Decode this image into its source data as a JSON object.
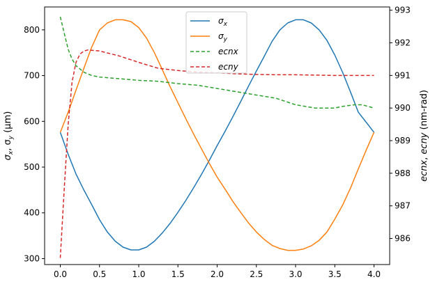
{
  "chart_data": {
    "type": "line",
    "x_ticks": [
      "0.0",
      "0.5",
      "1.0",
      "1.5",
      "2.0",
      "2.5",
      "3.0",
      "3.5",
      "4.0"
    ],
    "y_left_ticks": [
      "300",
      "400",
      "500",
      "600",
      "700",
      "800"
    ],
    "y_right_ticks": [
      "986",
      "987",
      "988",
      "989",
      "990",
      "991",
      "992",
      "993"
    ],
    "xlim": [
      -0.2,
      4.2
    ],
    "ylim_left": [
      287,
      850
    ],
    "ylim_right": [
      985.2,
      993.1
    ],
    "ylabel_left": {
      "main": "σ",
      "sub1": "x",
      "sep": ", σ",
      "sub2": "y",
      "unit": " (μm)"
    },
    "ylabel_right": {
      "part1": "ecnx",
      "sep": ", ",
      "part2": "ecny",
      "unit": " (nm-rad)"
    },
    "grid": false,
    "legend_position": "top-center",
    "series": [
      {
        "name": "σx",
        "name_main": "σ",
        "name_sub": "x",
        "axis": "left",
        "color": "#1f77b4",
        "dash": "solid",
        "x": [
          0.0,
          0.1,
          0.2,
          0.3,
          0.4,
          0.5,
          0.6,
          0.7,
          0.8,
          0.9,
          1.0,
          1.1,
          1.2,
          1.3,
          1.4,
          1.5,
          1.6,
          1.7,
          1.8,
          1.9,
          2.0,
          2.1,
          2.2,
          2.3,
          2.4,
          2.5,
          2.6,
          2.7,
          2.8,
          2.9,
          3.0,
          3.1,
          3.2,
          3.3,
          3.4,
          3.5,
          3.6,
          3.7,
          3.8,
          3.9,
          4.0
        ],
        "y": [
          576,
          528,
          485,
          450,
          418,
          385,
          358,
          338,
          325,
          319,
          319,
          325,
          338,
          356,
          377,
          401,
          427,
          455,
          484,
          515,
          547,
          578,
          610,
          643,
          677,
          710,
          742,
          775,
          800,
          815,
          822,
          822,
          815,
          800,
          777,
          745,
          707,
          664,
          620,
          598,
          576
        ]
      },
      {
        "name": "σy",
        "name_main": "σ",
        "name_sub": "y",
        "axis": "left",
        "color": "#ff7f0e",
        "dash": "solid",
        "x": [
          0.0,
          0.1,
          0.2,
          0.3,
          0.4,
          0.5,
          0.6,
          0.7,
          0.8,
          0.9,
          1.0,
          1.1,
          1.2,
          1.3,
          1.4,
          1.5,
          1.6,
          1.7,
          1.8,
          1.9,
          2.0,
          2.1,
          2.2,
          2.3,
          2.4,
          2.5,
          2.6,
          2.7,
          2.8,
          2.9,
          3.0,
          3.1,
          3.2,
          3.3,
          3.4,
          3.5,
          3.6,
          3.7,
          3.8,
          3.9,
          4.0
        ],
        "y": [
          576,
          620,
          668,
          716,
          762,
          800,
          815,
          822,
          822,
          818,
          805,
          782,
          750,
          713,
          676,
          641,
          606,
          572,
          540,
          508,
          478,
          452,
          425,
          401,
          378,
          358,
          342,
          329,
          322,
          318,
          318,
          321,
          328,
          340,
          358,
          386,
          417,
          454,
          496,
          537,
          576
        ]
      },
      {
        "name": "ecnx",
        "axis": "right",
        "color": "#2ca02c",
        "dash": "5,3",
        "x": [
          0.0,
          0.05,
          0.1,
          0.15,
          0.2,
          0.3,
          0.4,
          0.5,
          0.75,
          1.0,
          1.25,
          1.5,
          1.75,
          2.0,
          2.25,
          2.5,
          2.75,
          3.0,
          3.25,
          3.4,
          3.5,
          3.6,
          3.75,
          3.85,
          4.0
        ],
        "y": [
          992.8,
          992.3,
          991.8,
          991.5,
          991.3,
          991.1,
          991.0,
          990.95,
          990.9,
          990.85,
          990.82,
          990.75,
          990.7,
          990.6,
          990.5,
          990.4,
          990.3,
          990.1,
          990.0,
          990.0,
          990.0,
          990.05,
          990.1,
          990.1,
          990.0
        ]
      },
      {
        "name": "ecny",
        "axis": "right",
        "color": "#d62728",
        "dash": "5,3",
        "x": [
          0.0,
          0.05,
          0.1,
          0.15,
          0.2,
          0.25,
          0.3,
          0.35,
          0.5,
          0.75,
          1.0,
          1.25,
          1.5,
          1.75,
          2.0,
          2.25,
          2.5,
          2.75,
          3.0,
          3.25,
          3.5,
          3.75,
          4.0
        ],
        "y": [
          985.4,
          987.5,
          989.5,
          990.8,
          991.4,
          991.65,
          991.75,
          991.78,
          991.75,
          991.6,
          991.4,
          991.22,
          991.15,
          991.1,
          991.08,
          991.05,
          991.03,
          991.02,
          991.02,
          991.01,
          991.0,
          991.0,
          991.0
        ]
      }
    ]
  }
}
